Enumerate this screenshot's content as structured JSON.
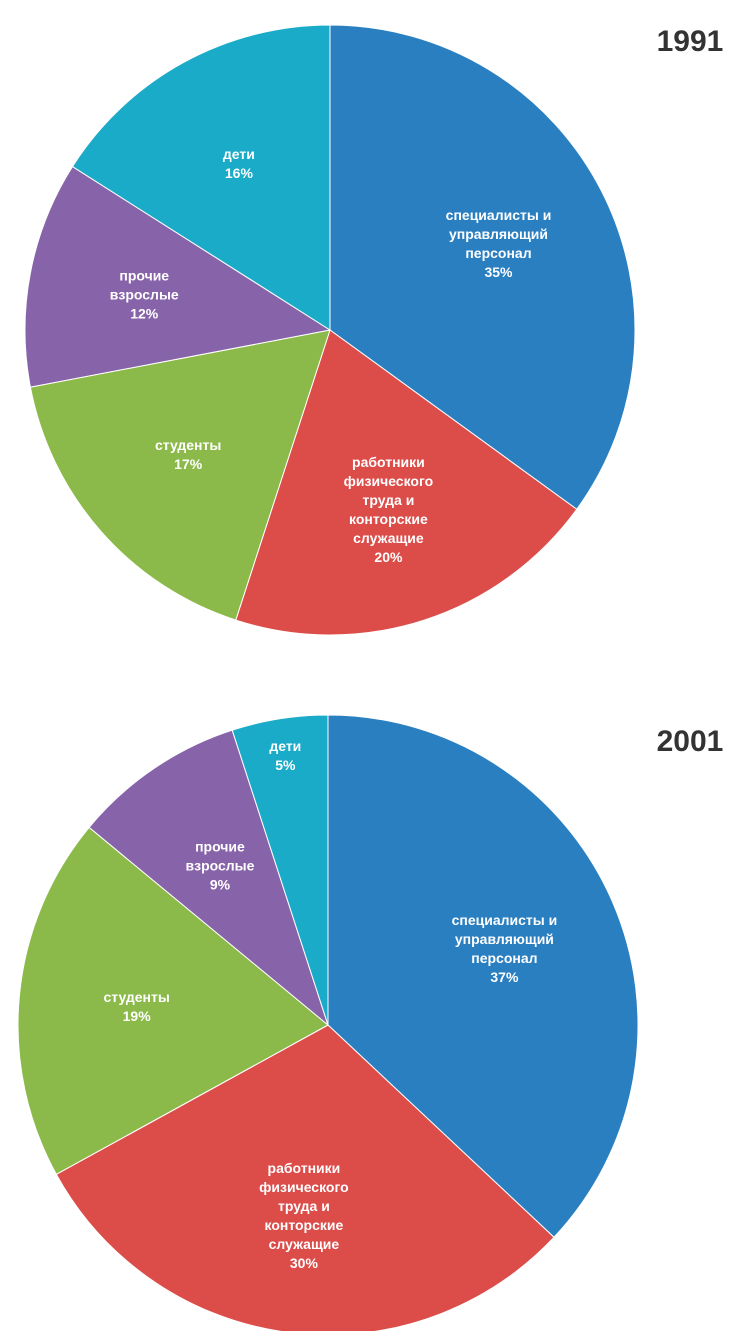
{
  "chart_data": [
    {
      "type": "pie",
      "title": "1991",
      "categories": [
        "специалисты и управляющий персонал",
        "работники физического труда и конторские служащие",
        "студенты",
        "прочие взрослые",
        "дети"
      ],
      "values": [
        35,
        20,
        17,
        12,
        16
      ],
      "value_labels": [
        "35%",
        "20%",
        "17%",
        "12%",
        "16%"
      ],
      "colors": [
        "#2a7fc1",
        "#dc4d4a",
        "#8cba4a",
        "#8763a9",
        "#1aabc8"
      ]
    },
    {
      "type": "pie",
      "title": "2001",
      "categories": [
        "специалисты и управляющий персонал",
        "работники физического труда и конторские служащие",
        "студенты",
        "прочие взрослые",
        "дети"
      ],
      "values": [
        37,
        30,
        19,
        9,
        5
      ],
      "value_labels": [
        "37%",
        "30%",
        "19%",
        "9%",
        "5%"
      ],
      "colors": [
        "#2a7fc1",
        "#dc4d4a",
        "#8cba4a",
        "#8763a9",
        "#1aabc8"
      ]
    }
  ]
}
